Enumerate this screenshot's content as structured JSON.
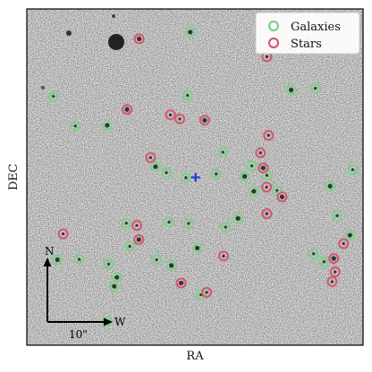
{
  "chart_data": {
    "type": "scatter",
    "title": "",
    "xlabel": "RA",
    "ylabel": "DEC",
    "xlim": [
      0,
      1
    ],
    "ylim": [
      0,
      1
    ],
    "grid": false,
    "legend_position": "top-right",
    "center_marker": {
      "x": 0.502,
      "y": 0.499,
      "color": "#1f3fd6"
    },
    "compass": {
      "north_label": "N",
      "west_label": "W",
      "scale_label": "10\""
    },
    "series": [
      {
        "name": "Galaxies",
        "color": "#7fd18a",
        "points": [
          [
            0.486,
            0.931
          ],
          [
            0.079,
            0.74
          ],
          [
            0.144,
            0.652
          ],
          [
            0.239,
            0.654
          ],
          [
            0.478,
            0.743
          ],
          [
            0.583,
            0.574
          ],
          [
            0.648,
            0.502
          ],
          [
            0.669,
            0.533
          ],
          [
            0.714,
            0.505
          ],
          [
            0.675,
            0.458
          ],
          [
            0.563,
            0.509
          ],
          [
            0.415,
            0.513
          ],
          [
            0.383,
            0.531
          ],
          [
            0.473,
            0.498
          ],
          [
            0.744,
            0.46
          ],
          [
            0.902,
            0.473
          ],
          [
            0.969,
            0.522
          ],
          [
            0.923,
            0.385
          ],
          [
            0.961,
            0.327
          ],
          [
            0.884,
            0.248
          ],
          [
            0.853,
            0.272
          ],
          [
            0.786,
            0.759
          ],
          [
            0.858,
            0.764
          ],
          [
            0.834,
            0.913
          ],
          [
            0.628,
            0.377
          ],
          [
            0.591,
            0.351
          ],
          [
            0.481,
            0.362
          ],
          [
            0.507,
            0.289
          ],
          [
            0.423,
            0.366
          ],
          [
            0.386,
            0.254
          ],
          [
            0.43,
            0.237
          ],
          [
            0.306,
            0.294
          ],
          [
            0.296,
            0.363
          ],
          [
            0.26,
            0.175
          ],
          [
            0.243,
            0.241
          ],
          [
            0.156,
            0.255
          ],
          [
            0.091,
            0.254
          ],
          [
            0.238,
            0.069
          ],
          [
            0.518,
            0.15
          ],
          [
            0.268,
            0.202
          ]
        ]
      },
      {
        "name": "Stars",
        "color": "#d65a72",
        "points": [
          [
            0.334,
            0.911
          ],
          [
            0.714,
            0.858
          ],
          [
            0.784,
            0.882
          ],
          [
            0.298,
            0.701
          ],
          [
            0.427,
            0.685
          ],
          [
            0.455,
            0.673
          ],
          [
            0.529,
            0.669
          ],
          [
            0.368,
            0.558
          ],
          [
            0.695,
            0.572
          ],
          [
            0.703,
            0.527
          ],
          [
            0.719,
            0.624
          ],
          [
            0.713,
            0.47
          ],
          [
            0.759,
            0.441
          ],
          [
            0.714,
            0.391
          ],
          [
            0.327,
            0.356
          ],
          [
            0.333,
            0.314
          ],
          [
            0.108,
            0.331
          ],
          [
            0.585,
            0.265
          ],
          [
            0.459,
            0.185
          ],
          [
            0.535,
            0.157
          ],
          [
            0.942,
            0.302
          ],
          [
            0.913,
            0.258
          ],
          [
            0.908,
            0.189
          ],
          [
            0.917,
            0.218
          ]
        ]
      }
    ]
  }
}
